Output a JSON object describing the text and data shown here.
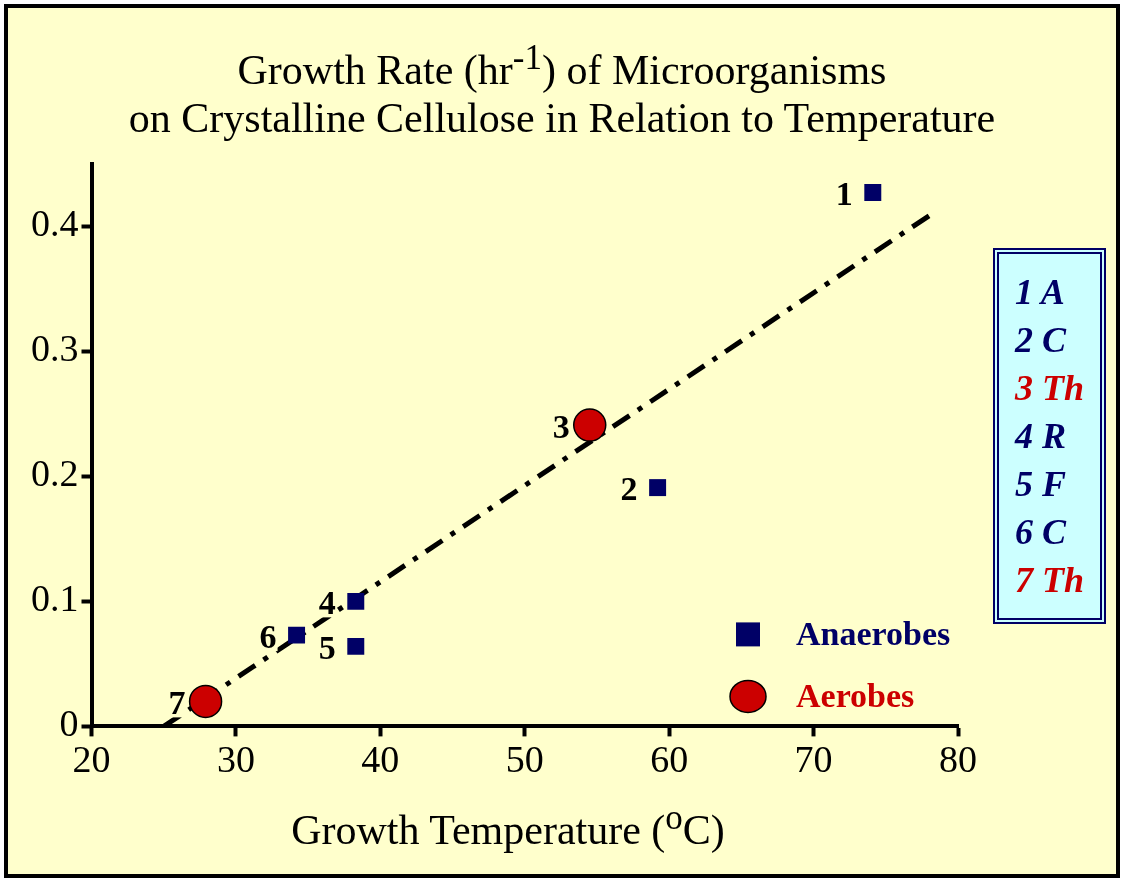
{
  "chart_data": {
    "type": "scatter",
    "title": "Growth Rate (hr$^{-1}$) of Microorganisms\non Crystalline Cellulose in Relation to Temperature",
    "xlabel": "Growth Temperature  ($^{o}$C)",
    "series": [
      {
        "name": "Anaerobes",
        "color": "#000066",
        "marker": "square",
        "x": [
          74.1,
          59.2,
          38.3,
          38.3,
          34.2
        ],
        "values": [
          0.427,
          0.191,
          0.1,
          0.064,
          0.073
        ]
      },
      {
        "name": "Aerobes",
        "color": "#cc0000",
        "marker": "circle",
        "x": [
          54.5,
          27.9
        ],
        "values": [
          0.241,
          0.02
        ]
      },
      {
        "type": "line",
        "color": "#000000",
        "line_style": "dashed",
        "marker": "none",
        "x": [
          25,
          78.2
        ],
        "values": [
          0,
          0.41
        ]
      }
    ],
    "annotations": [
      {
        "text": "1",
        "x": 74.1,
        "y": 0.427
      },
      {
        "text": "2",
        "x": 59.2,
        "y": 0.191
      },
      {
        "text": "3",
        "x": 54.5,
        "y": 0.241
      },
      {
        "text": "4",
        "x": 38.3,
        "y": 0.1
      },
      {
        "text": "5",
        "x": 38.3,
        "y": 0.064
      },
      {
        "text": "6",
        "x": 34.2,
        "y": 0.073
      },
      {
        "text": "7",
        "x": 27.9,
        "y": 0.02
      },
      "1 A",
      "2 C",
      "3 Th",
      "4 R",
      "5 F",
      "6 C",
      "7 Th"
    ],
    "xlim": [
      20,
      80
    ],
    "xticks": [
      20,
      30,
      40,
      50,
      60,
      70,
      80
    ],
    "ylim": [
      0,
      0.45
    ],
    "yticks": [
      0,
      0.1,
      0.2,
      0.3,
      0.4
    ],
    "grid": false,
    "legend": "bottom right"
  }
}
